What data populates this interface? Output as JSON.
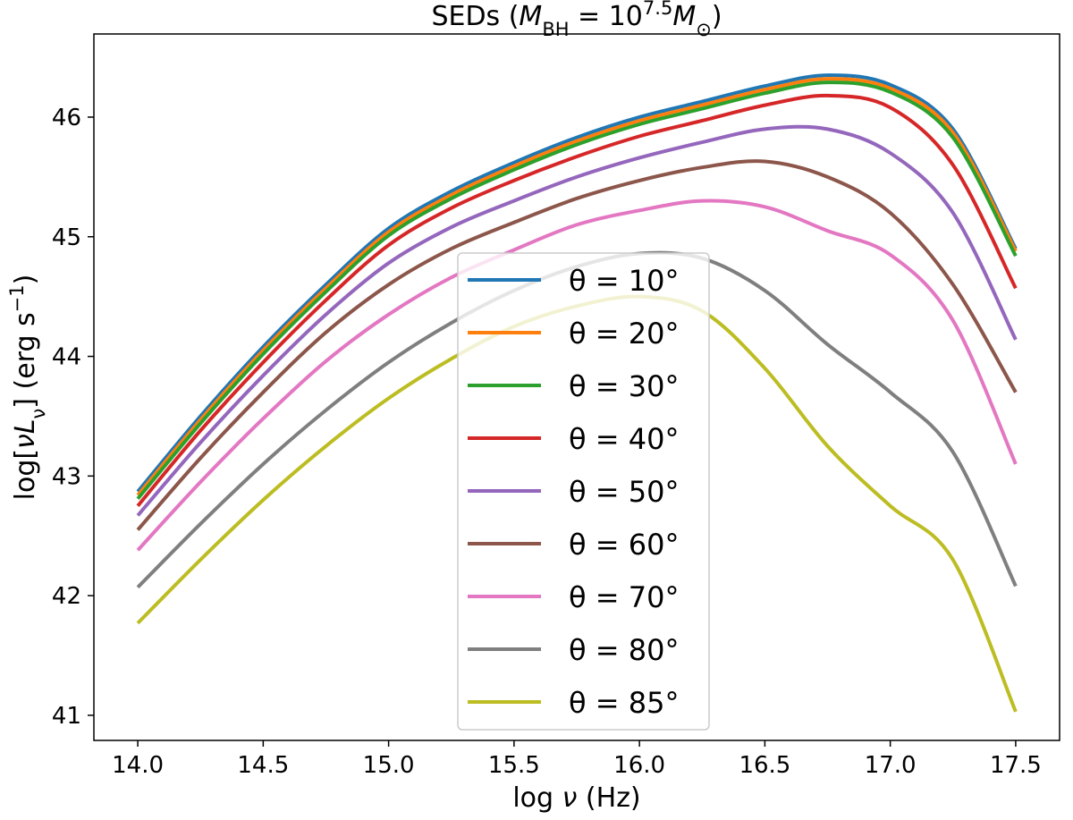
{
  "chart_data": {
    "type": "line",
    "title": [
      "SEDs (",
      "M",
      "BH",
      " = 10",
      "7.5",
      "M",
      "⊙",
      ")"
    ],
    "xlabel": [
      "log ",
      "ν",
      " (Hz)"
    ],
    "ylabel": [
      "log[",
      "ν",
      "L",
      "ν",
      "] (erg s",
      "−1",
      ")"
    ],
    "x": [
      14.0,
      14.25,
      14.5,
      14.75,
      15.0,
      15.25,
      15.5,
      15.75,
      16.0,
      16.25,
      16.5,
      16.75,
      17.0,
      17.25,
      17.5
    ],
    "series": [
      {
        "name": "θ = 10°",
        "color": "#1f77b4",
        "values": [
          42.87,
          43.5,
          44.08,
          44.6,
          45.07,
          45.38,
          45.62,
          45.83,
          46.0,
          46.13,
          46.26,
          46.35,
          46.27,
          45.9,
          44.9
        ]
      },
      {
        "name": "θ = 20°",
        "color": "#ff7f0e",
        "values": [
          42.84,
          43.47,
          44.05,
          44.57,
          45.04,
          45.35,
          45.59,
          45.8,
          45.97,
          46.1,
          46.23,
          46.32,
          46.24,
          45.87,
          44.88
        ]
      },
      {
        "name": "θ = 30°",
        "color": "#2ca02c",
        "values": [
          42.81,
          43.44,
          44.02,
          44.54,
          45.01,
          45.32,
          45.56,
          45.77,
          45.94,
          46.07,
          46.2,
          46.29,
          46.21,
          45.83,
          44.84
        ]
      },
      {
        "name": "θ = 40°",
        "color": "#d62728",
        "values": [
          42.75,
          43.38,
          43.95,
          44.47,
          44.93,
          45.24,
          45.47,
          45.67,
          45.84,
          45.97,
          46.1,
          46.18,
          46.08,
          45.6,
          44.57
        ]
      },
      {
        "name": "θ = 50°",
        "color": "#9467bd",
        "values": [
          42.67,
          43.28,
          43.84,
          44.35,
          44.78,
          45.08,
          45.3,
          45.5,
          45.66,
          45.79,
          45.9,
          45.9,
          45.7,
          45.2,
          44.14
        ]
      },
      {
        "name": "θ = 60°",
        "color": "#8c564b",
        "values": [
          42.55,
          43.15,
          43.7,
          44.2,
          44.6,
          44.9,
          45.12,
          45.32,
          45.47,
          45.58,
          45.63,
          45.5,
          45.2,
          44.6,
          43.7
        ]
      },
      {
        "name": "θ = 70°",
        "color": "#e377c2",
        "values": [
          42.38,
          42.95,
          43.48,
          43.96,
          44.35,
          44.66,
          44.89,
          45.1,
          45.22,
          45.3,
          45.25,
          45.05,
          44.85,
          44.3,
          43.1
        ]
      },
      {
        "name": "θ = 80°",
        "color": "#7f7f7f",
        "values": [
          42.07,
          42.6,
          43.1,
          43.55,
          43.95,
          44.28,
          44.55,
          44.75,
          44.86,
          44.82,
          44.55,
          44.1,
          43.7,
          43.2,
          42.08
        ]
      },
      {
        "name": "θ = 85°",
        "color": "#bcbd22",
        "values": [
          41.77,
          42.3,
          42.8,
          43.25,
          43.65,
          43.98,
          44.25,
          44.42,
          44.5,
          44.38,
          43.9,
          43.25,
          42.75,
          42.3,
          41.03
        ]
      }
    ],
    "xlim": [
      13.825,
      17.675
    ],
    "ylim": [
      40.79,
      46.695
    ],
    "xticks": [
      {
        "value": 14,
        "label": "14.0"
      },
      14.5,
      {
        "value": 15,
        "label": "15.0"
      },
      15.5,
      {
        "value": 16,
        "label": "16.0"
      },
      16.5,
      {
        "value": 17,
        "label": "17.0"
      },
      17.5
    ],
    "yticks": [
      41,
      42,
      43,
      44,
      45,
      46
    ],
    "grid": false,
    "legend": "center"
  }
}
